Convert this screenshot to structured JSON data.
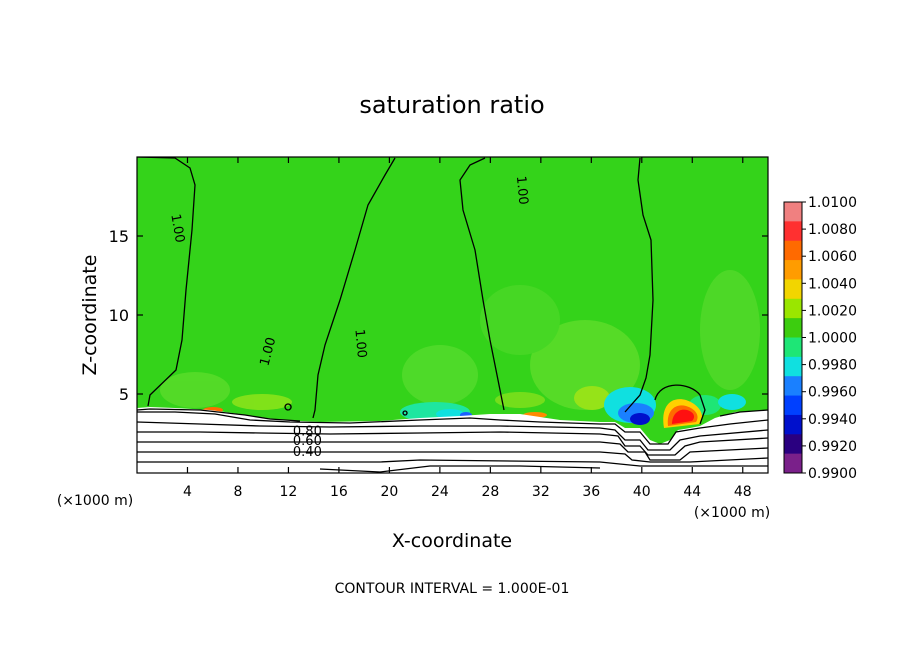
{
  "chart_data": {
    "type": "heatmap",
    "title": "saturation ratio",
    "xlabel": "X-coordinate",
    "ylabel": "Z-coordinate",
    "x_unit_left": "(×1000 m)",
    "x_unit_right": "(×1000 m)",
    "xlim": [
      0,
      50
    ],
    "ylim": [
      0,
      20
    ],
    "xticks": [
      4,
      8,
      12,
      16,
      20,
      24,
      28,
      32,
      36,
      40,
      44,
      48
    ],
    "yticks": [
      5,
      10,
      15
    ],
    "footer": "CONTOUR INTERVAL = 1.000E-01",
    "contour_labels": [
      {
        "text": "1.00",
        "x": 3.3,
        "z": 15.5,
        "angle": 80
      },
      {
        "text": "1.00",
        "x": 10.3,
        "z": 7.7,
        "angle": -75
      },
      {
        "text": "1.00",
        "x": 17.8,
        "z": 8.2,
        "angle": 85
      },
      {
        "text": "1.00",
        "x": 30.6,
        "z": 17.9,
        "angle": 85
      },
      {
        "text": "0.80",
        "x": 13.5,
        "z": 2.7,
        "angle": 0
      },
      {
        "text": "0.60",
        "x": 13.5,
        "z": 2.1,
        "angle": 0
      },
      {
        "text": "0.40",
        "x": 13.5,
        "z": 1.4,
        "angle": 0
      }
    ],
    "colorbar": {
      "labels": [
        "1.0100",
        "1.0080",
        "1.0060",
        "1.0040",
        "1.0020",
        "1.0000",
        "0.9980",
        "0.9960",
        "0.9940",
        "0.9920",
        "0.9900"
      ],
      "colors": [
        "#f08080",
        "#ff3030",
        "#ff6a00",
        "#ff9c00",
        "#f2d500",
        "#9ae600",
        "#3ccd0f",
        "#1ee676",
        "#10e0e0",
        "#1a80ff",
        "#0040ff",
        "#0010cc",
        "#2a0080",
        "#7a208a"
      ]
    }
  }
}
